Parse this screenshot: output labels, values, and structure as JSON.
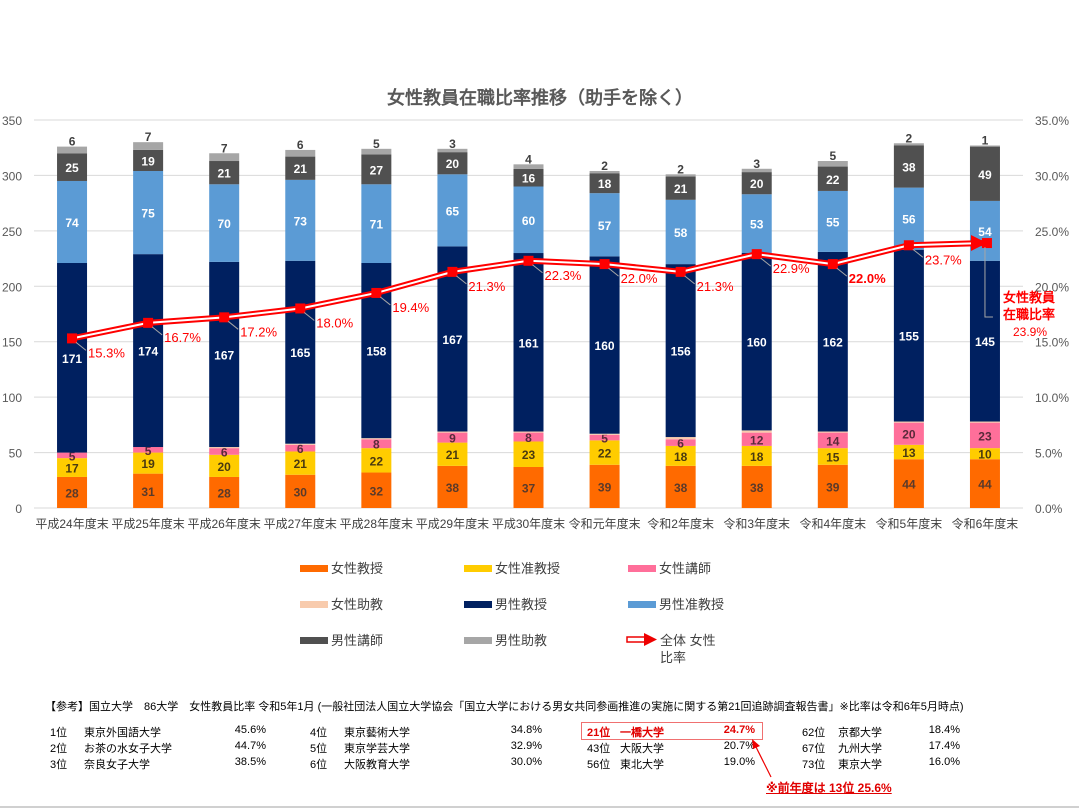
{
  "chart_data": {
    "type": "bar",
    "stacked": true,
    "title": "女性教員在職比率推移（助手を除く）",
    "categories": [
      "平成24年度末",
      "平成25年度末",
      "平成26年度末",
      "平成27年度末",
      "平成28年度末",
      "平成29年度末",
      "平成30年度末",
      "令和元年度末",
      "令和2年度末",
      "令和3年度末",
      "令和4年度末",
      "令和5年度末",
      "令和6年度末"
    ],
    "ylim": [
      0,
      350
    ],
    "yticks": [
      "0",
      "50",
      "100",
      "150",
      "200",
      "250",
      "300",
      "350"
    ],
    "y2lim": [
      0,
      35
    ],
    "y2ticks": [
      "0.0%",
      "5.0%",
      "10.0%",
      "15.0%",
      "20.0%",
      "25.0%",
      "30.0%",
      "35.0%"
    ],
    "grid": true,
    "legend_position": "bottom",
    "series": [
      {
        "name": "女性教授",
        "color": "#ff6a00",
        "label_color": "#5a3a2a",
        "values": [
          28,
          31,
          28,
          30,
          32,
          38,
          37,
          39,
          38,
          38,
          39,
          44,
          44
        ]
      },
      {
        "name": "女性准教授",
        "color": "#ffcc00",
        "label_color": "#4a3a10",
        "values": [
          17,
          19,
          20,
          21,
          22,
          21,
          23,
          22,
          18,
          18,
          15,
          13,
          10
        ]
      },
      {
        "name": "女性講師",
        "color": "#ff6f9a",
        "label_color": "#5a2a3a",
        "values": [
          5,
          5,
          6,
          6,
          8,
          9,
          8,
          5,
          6,
          12,
          14,
          20,
          23
        ]
      },
      {
        "name": "女性助教",
        "color": "#f8cbad",
        "label_color": "#ffffff",
        "values": [
          0,
          0,
          1,
          1,
          1,
          1,
          1,
          1,
          2,
          2,
          1,
          1,
          1
        ]
      },
      {
        "name": "男性教授",
        "color": "#002060",
        "label_color": "#ffffff",
        "values": [
          171,
          174,
          167,
          165,
          158,
          167,
          161,
          160,
          156,
          160,
          162,
          155,
          145
        ]
      },
      {
        "name": "男性准教授",
        "color": "#5b9bd5",
        "label_color": "#ffffff",
        "values": [
          74,
          75,
          70,
          73,
          71,
          65,
          60,
          57,
          58,
          53,
          55,
          56,
          54
        ]
      },
      {
        "name": "男性講師",
        "color": "#505050",
        "label_color": "#ffffff",
        "values": [
          25,
          19,
          21,
          21,
          27,
          20,
          16,
          18,
          21,
          20,
          22,
          38,
          49
        ]
      },
      {
        "name": "男性助教",
        "color": "#a6a6a6",
        "label_color": "#404040",
        "values": [
          6,
          7,
          7,
          6,
          5,
          3,
          4,
          2,
          2,
          3,
          5,
          2,
          1
        ]
      }
    ],
    "line": {
      "name": "全体 女性比率",
      "axis": "right",
      "color": "#ff0000",
      "values": [
        15.3,
        16.7,
        17.2,
        18.0,
        19.4,
        21.3,
        22.3,
        22.0,
        21.3,
        22.9,
        22.0,
        23.7,
        23.9
      ],
      "labels": [
        "15.3%",
        "16.7%",
        "17.2%",
        "18.0%",
        "19.4%",
        "21.3%",
        "22.3%",
        "22.0%",
        "21.3%",
        "22.9%",
        "22.0%",
        "23.7%",
        "23.9%"
      ],
      "annotation": "女性教員在職比率"
    }
  },
  "legend": {
    "items": [
      "女性教授",
      "女性准教授",
      "女性講師",
      "女性助教",
      "男性教授",
      "男性准教授",
      "男性講師",
      "男性助教"
    ],
    "line_label": "全体 女性比率"
  },
  "reference": {
    "header": "【参考】国立大学　86大学　女性教員比率 令和5年1月 (一般社団法人国立大学協会「国立大学における男女共同参画推進の実施に関する第21回追跡調査報告書」※比率は令和6年5月時点)",
    "columns": [
      [
        {
          "rank": "1位",
          "name": "東京外国語大学",
          "pct": "45.6%"
        },
        {
          "rank": "2位",
          "name": "お茶の水女子大学",
          "pct": "44.7%"
        },
        {
          "rank": "3位",
          "name": "奈良女子大学",
          "pct": "38.5%"
        }
      ],
      [
        {
          "rank": "4位",
          "name": "東京藝術大学",
          "pct": "34.8%"
        },
        {
          "rank": "5位",
          "name": "東京学芸大学",
          "pct": "32.9%"
        },
        {
          "rank": "6位",
          "name": "大阪教育大学",
          "pct": "30.0%"
        }
      ],
      [
        {
          "rank": "21位",
          "name": "一橋大学",
          "pct": "24.7%"
        },
        {
          "rank": "43位",
          "name": "大阪大学",
          "pct": "20.7%"
        },
        {
          "rank": "56位",
          "name": "東北大学",
          "pct": "19.0%"
        }
      ],
      [
        {
          "rank": "62位",
          "name": "京都大学",
          "pct": "18.4%"
        },
        {
          "rank": "67位",
          "name": "九州大学",
          "pct": "17.4%"
        },
        {
          "rank": "73位",
          "name": "東京大学",
          "pct": "16.0%"
        }
      ]
    ],
    "note": "※前年度は  13位  25.6%"
  }
}
